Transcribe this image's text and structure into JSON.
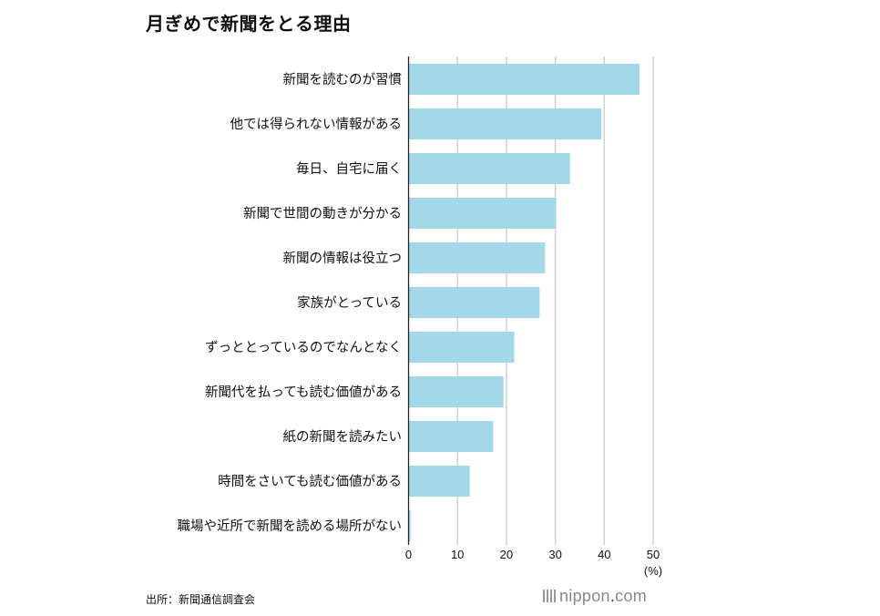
{
  "chart_data": {
    "type": "bar",
    "orientation": "horizontal",
    "title": "月ぎめで新聞をとる理由",
    "categories": [
      "新聞を読むのが習慣",
      "他では得られない情報がある",
      "毎日、自宅に届く",
      "新聞で世間の動きが分かる",
      "新聞の情報は役立つ",
      "家族がとっている",
      "ずっととっているのでなんとなく",
      "新聞代を払っても読む価値がある",
      "紙の新聞を読みたい",
      "時間をさいても読む価値がある",
      "職場や近所で新聞を読める場所がない"
    ],
    "values": [
      47.2,
      39.4,
      33.0,
      30.2,
      27.9,
      26.8,
      21.6,
      19.4,
      17.3,
      12.5,
      0.4
    ],
    "xlabel": "(%)",
    "xlim": [
      0,
      50
    ],
    "xticks": [
      "0",
      "10",
      "20",
      "30",
      "40",
      "50"
    ],
    "grid": true,
    "bar_color": "#a3d8e9"
  },
  "source": "出所：新聞通信調査会",
  "logo": {
    "text": "nippon",
    "dot": ".",
    "suffix": "com"
  }
}
